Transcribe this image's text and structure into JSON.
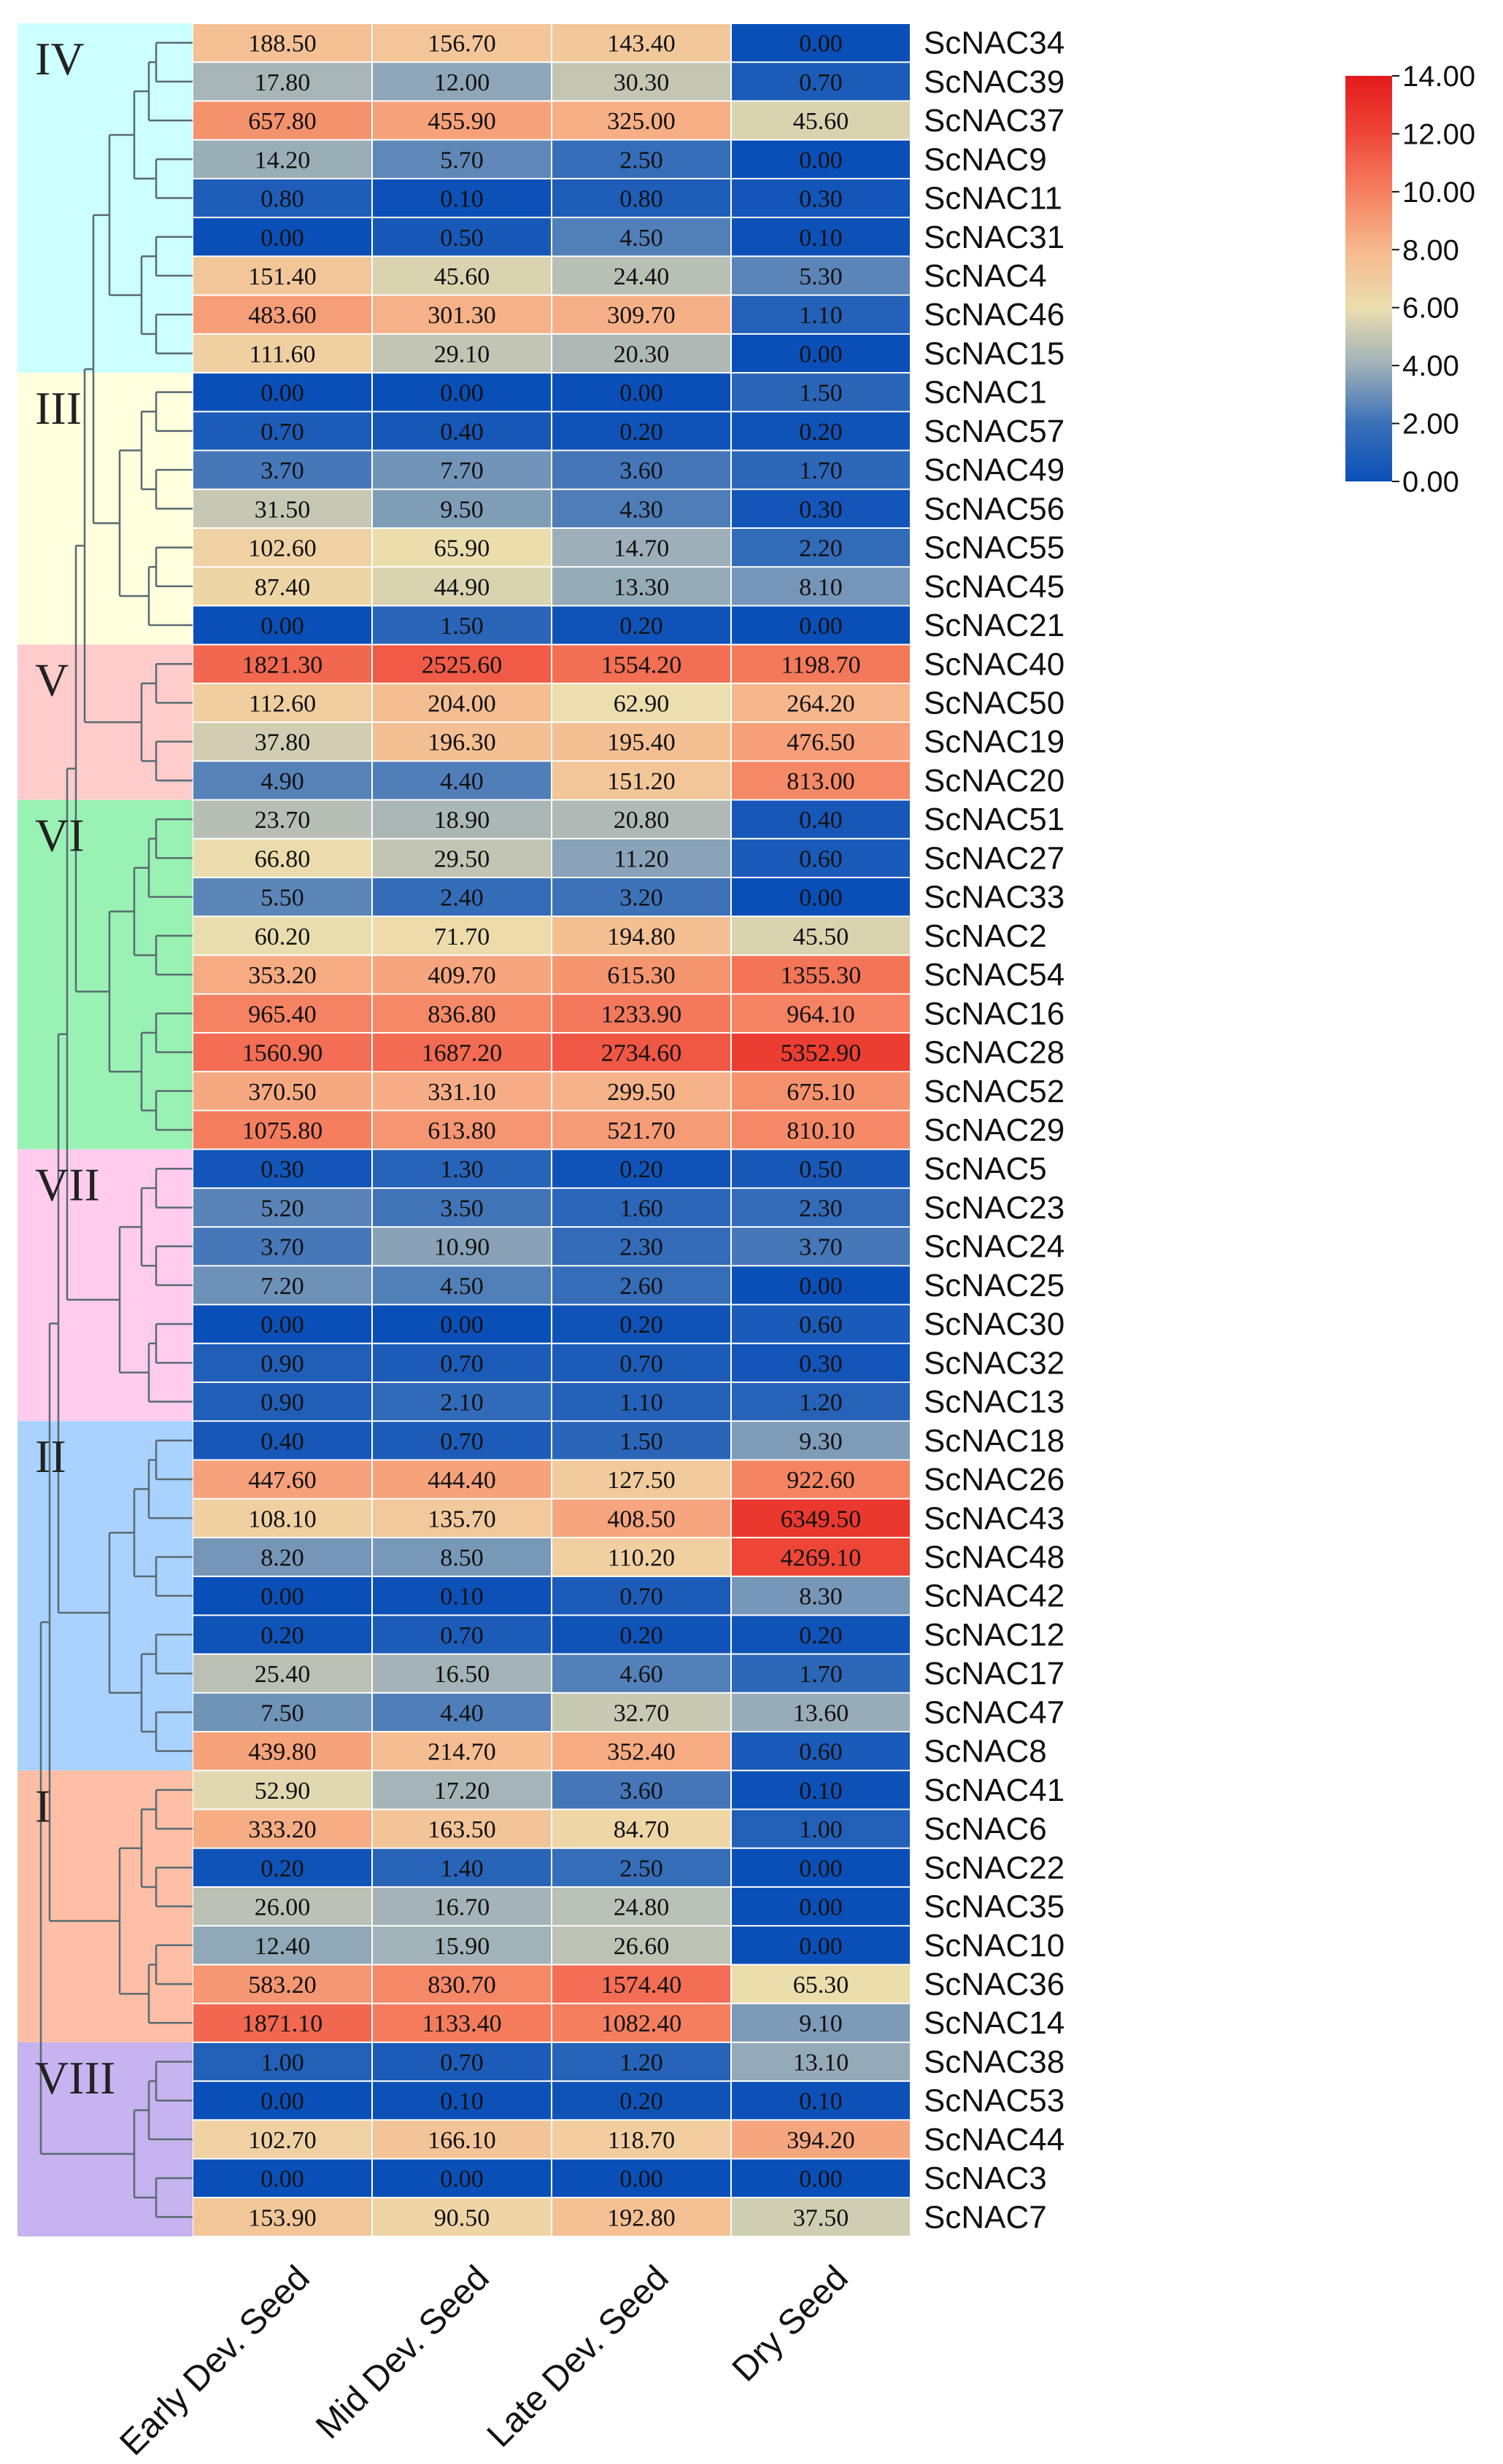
{
  "chart_data": {
    "type": "heatmap",
    "title": "",
    "columns": [
      "Early Dev. Seed",
      "Mid Dev. Seed",
      "Late Dev. Seed",
      "Dry Seed"
    ],
    "rows": [
      {
        "gene": "ScNAC34",
        "values": [
          "188.50",
          "156.70",
          "143.40",
          "0.00"
        ]
      },
      {
        "gene": "ScNAC39",
        "values": [
          "17.80",
          "12.00",
          "30.30",
          "0.70"
        ]
      },
      {
        "gene": "ScNAC37",
        "values": [
          "657.80",
          "455.90",
          "325.00",
          "45.60"
        ]
      },
      {
        "gene": "ScNAC9",
        "values": [
          "14.20",
          "5.70",
          "2.50",
          "0.00"
        ]
      },
      {
        "gene": "ScNAC11",
        "values": [
          "0.80",
          "0.10",
          "0.80",
          "0.30"
        ]
      },
      {
        "gene": "ScNAC31",
        "values": [
          "0.00",
          "0.50",
          "4.50",
          "0.10"
        ]
      },
      {
        "gene": "ScNAC4",
        "values": [
          "151.40",
          "45.60",
          "24.40",
          "5.30"
        ]
      },
      {
        "gene": "ScNAC46",
        "values": [
          "483.60",
          "301.30",
          "309.70",
          "1.10"
        ]
      },
      {
        "gene": "ScNAC15",
        "values": [
          "111.60",
          "29.10",
          "20.30",
          "0.00"
        ]
      },
      {
        "gene": "ScNAC1",
        "values": [
          "0.00",
          "0.00",
          "0.00",
          "1.50"
        ]
      },
      {
        "gene": "ScNAC57",
        "values": [
          "0.70",
          "0.40",
          "0.20",
          "0.20"
        ]
      },
      {
        "gene": "ScNAC49",
        "values": [
          "3.70",
          "7.70",
          "3.60",
          "1.70"
        ]
      },
      {
        "gene": "ScNAC56",
        "values": [
          "31.50",
          "9.50",
          "4.30",
          "0.30"
        ]
      },
      {
        "gene": "ScNAC55",
        "values": [
          "102.60",
          "65.90",
          "14.70",
          "2.20"
        ]
      },
      {
        "gene": "ScNAC45",
        "values": [
          "87.40",
          "44.90",
          "13.30",
          "8.10"
        ]
      },
      {
        "gene": "ScNAC21",
        "values": [
          "0.00",
          "1.50",
          "0.20",
          "0.00"
        ]
      },
      {
        "gene": "ScNAC40",
        "values": [
          "1821.30",
          "2525.60",
          "1554.20",
          "1198.70"
        ]
      },
      {
        "gene": "ScNAC50",
        "values": [
          "112.60",
          "204.00",
          "62.90",
          "264.20"
        ]
      },
      {
        "gene": "ScNAC19",
        "values": [
          "37.80",
          "196.30",
          "195.40",
          "476.50"
        ]
      },
      {
        "gene": "ScNAC20",
        "values": [
          "4.90",
          "4.40",
          "151.20",
          "813.00"
        ]
      },
      {
        "gene": "ScNAC51",
        "values": [
          "23.70",
          "18.90",
          "20.80",
          "0.40"
        ]
      },
      {
        "gene": "ScNAC27",
        "values": [
          "66.80",
          "29.50",
          "11.20",
          "0.60"
        ]
      },
      {
        "gene": "ScNAC33",
        "values": [
          "5.50",
          "2.40",
          "3.20",
          "0.00"
        ]
      },
      {
        "gene": "ScNAC2",
        "values": [
          "60.20",
          "71.70",
          "194.80",
          "45.50"
        ]
      },
      {
        "gene": "ScNAC54",
        "values": [
          "353.20",
          "409.70",
          "615.30",
          "1355.30"
        ]
      },
      {
        "gene": "ScNAC16",
        "values": [
          "965.40",
          "836.80",
          "1233.90",
          "964.10"
        ]
      },
      {
        "gene": "ScNAC28",
        "values": [
          "1560.90",
          "1687.20",
          "2734.60",
          "5352.90"
        ]
      },
      {
        "gene": "ScNAC52",
        "values": [
          "370.50",
          "331.10",
          "299.50",
          "675.10"
        ]
      },
      {
        "gene": "ScNAC29",
        "values": [
          "1075.80",
          "613.80",
          "521.70",
          "810.10"
        ]
      },
      {
        "gene": "ScNAC5",
        "values": [
          "0.30",
          "1.30",
          "0.20",
          "0.50"
        ]
      },
      {
        "gene": "ScNAC23",
        "values": [
          "5.20",
          "3.50",
          "1.60",
          "2.30"
        ]
      },
      {
        "gene": "ScNAC24",
        "values": [
          "3.70",
          "10.90",
          "2.30",
          "3.70"
        ]
      },
      {
        "gene": "ScNAC25",
        "values": [
          "7.20",
          "4.50",
          "2.60",
          "0.00"
        ]
      },
      {
        "gene": "ScNAC30",
        "values": [
          "0.00",
          "0.00",
          "0.20",
          "0.60"
        ]
      },
      {
        "gene": "ScNAC32",
        "values": [
          "0.90",
          "0.70",
          "0.70",
          "0.30"
        ]
      },
      {
        "gene": "ScNAC13",
        "values": [
          "0.90",
          "2.10",
          "1.10",
          "1.20"
        ]
      },
      {
        "gene": "ScNAC18",
        "values": [
          "0.40",
          "0.70",
          "1.50",
          "9.30"
        ]
      },
      {
        "gene": "ScNAC26",
        "values": [
          "447.60",
          "444.40",
          "127.50",
          "922.60"
        ]
      },
      {
        "gene": "ScNAC43",
        "values": [
          "108.10",
          "135.70",
          "408.50",
          "6349.50"
        ]
      },
      {
        "gene": "ScNAC48",
        "values": [
          "8.20",
          "8.50",
          "110.20",
          "4269.10"
        ]
      },
      {
        "gene": "ScNAC42",
        "values": [
          "0.00",
          "0.10",
          "0.70",
          "8.30"
        ]
      },
      {
        "gene": "ScNAC12",
        "values": [
          "0.20",
          "0.70",
          "0.20",
          "0.20"
        ]
      },
      {
        "gene": "ScNAC17",
        "values": [
          "25.40",
          "16.50",
          "4.60",
          "1.70"
        ]
      },
      {
        "gene": "ScNAC47",
        "values": [
          "7.50",
          "4.40",
          "32.70",
          "13.60"
        ]
      },
      {
        "gene": "ScNAC8",
        "values": [
          "439.80",
          "214.70",
          "352.40",
          "0.60"
        ]
      },
      {
        "gene": "ScNAC41",
        "values": [
          "52.90",
          "17.20",
          "3.60",
          "0.10"
        ]
      },
      {
        "gene": "ScNAC6",
        "values": [
          "333.20",
          "163.50",
          "84.70",
          "1.00"
        ]
      },
      {
        "gene": "ScNAC22",
        "values": [
          "0.20",
          "1.40",
          "2.50",
          "0.00"
        ]
      },
      {
        "gene": "ScNAC35",
        "values": [
          "26.00",
          "16.70",
          "24.80",
          "0.00"
        ]
      },
      {
        "gene": "ScNAC10",
        "values": [
          "12.40",
          "15.90",
          "26.60",
          "0.00"
        ]
      },
      {
        "gene": "ScNAC36",
        "values": [
          "583.20",
          "830.70",
          "1574.40",
          "65.30"
        ]
      },
      {
        "gene": "ScNAC14",
        "values": [
          "1871.10",
          "1133.40",
          "1082.40",
          "9.10"
        ]
      },
      {
        "gene": "ScNAC38",
        "values": [
          "1.00",
          "0.70",
          "1.20",
          "13.10"
        ]
      },
      {
        "gene": "ScNAC53",
        "values": [
          "0.00",
          "0.10",
          "0.20",
          "0.10"
        ]
      },
      {
        "gene": "ScNAC44",
        "values": [
          "102.70",
          "166.10",
          "118.70",
          "394.20"
        ]
      },
      {
        "gene": "ScNAC3",
        "values": [
          "0.00",
          "0.00",
          "0.00",
          "0.00"
        ]
      },
      {
        "gene": "ScNAC7",
        "values": [
          "153.90",
          "90.50",
          "192.80",
          "37.50"
        ]
      }
    ],
    "clusters": [
      {
        "label": "IV",
        "start": 0,
        "end": 8,
        "color": "#ccffff"
      },
      {
        "label": "III",
        "start": 9,
        "end": 15,
        "color": "#ffffdd"
      },
      {
        "label": "V",
        "start": 16,
        "end": 19,
        "color": "#ffcccc"
      },
      {
        "label": "VI",
        "start": 20,
        "end": 28,
        "color": "#99f2b4"
      },
      {
        "label": "VII",
        "start": 29,
        "end": 35,
        "color": "#ffccee"
      },
      {
        "label": "II",
        "start": 36,
        "end": 44,
        "color": "#a9d2ff"
      },
      {
        "label": "I",
        "start": 45,
        "end": 51,
        "color": "#ffbfa6"
      },
      {
        "label": "VIII",
        "start": 52,
        "end": 56,
        "color": "#c6b3f0"
      }
    ],
    "color_scale": {
      "transform": "log2(value + 1)",
      "min": 0,
      "max": 14,
      "ticks": [
        "0.00",
        "2.00",
        "4.00",
        "6.00",
        "8.00",
        "10.00",
        "12.00",
        "14.00"
      ],
      "stops": [
        {
          "v": 0,
          "color": "#0a4fb8"
        },
        {
          "v": 2,
          "color": "#3a70b8"
        },
        {
          "v": 4,
          "color": "#9eb0b8"
        },
        {
          "v": 6,
          "color": "#ecdeae"
        },
        {
          "v": 8,
          "color": "#f6b88d"
        },
        {
          "v": 10,
          "color": "#f58060"
        },
        {
          "v": 12,
          "color": "#ee4638"
        },
        {
          "v": 14,
          "color": "#e31a1c"
        }
      ]
    }
  }
}
